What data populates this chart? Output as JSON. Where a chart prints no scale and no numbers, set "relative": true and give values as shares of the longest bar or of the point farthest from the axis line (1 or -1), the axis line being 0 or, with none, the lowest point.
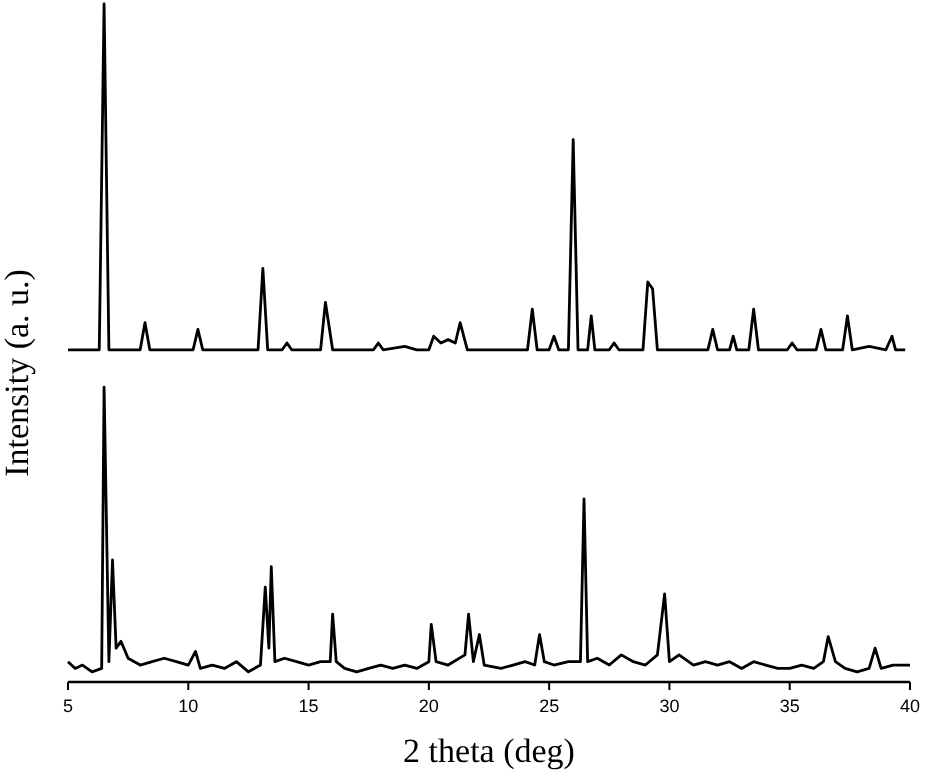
{
  "chart_data": {
    "type": "line",
    "relative": true,
    "xlabel": "2 theta (deg)",
    "ylabel": "Intensity (a. u.)",
    "xlim": [
      5,
      40
    ],
    "xticks": [
      5,
      10,
      15,
      20,
      25,
      30,
      35,
      40
    ],
    "tick_labels": "x",
    "series": [
      {
        "color": "#000000",
        "x": [
          5.0,
          6.3,
          6.5,
          6.7,
          8.0,
          8.2,
          8.4,
          10.2,
          10.4,
          10.6,
          12.9,
          13.1,
          13.3,
          13.9,
          14.1,
          14.3,
          15.5,
          15.7,
          16.0,
          17.7,
          17.9,
          18.1,
          19.0,
          19.5,
          20.0,
          20.2,
          20.5,
          20.8,
          21.1,
          21.3,
          21.6,
          22.5,
          23.5,
          24.1,
          24.3,
          24.5,
          25.0,
          25.2,
          25.4,
          25.8,
          26.0,
          26.2,
          26.6,
          26.75,
          26.9,
          27.5,
          27.7,
          27.9,
          28.9,
          29.1,
          29.3,
          29.5,
          31.6,
          31.8,
          32.0,
          32.5,
          32.65,
          32.8,
          33.3,
          33.5,
          33.7,
          34.9,
          35.1,
          35.3,
          36.1,
          36.3,
          36.5,
          37.2,
          37.4,
          37.6,
          38.3,
          39.0,
          39.25,
          39.4,
          39.8
        ],
        "values": [
          0.49,
          0.49,
          1.0,
          0.49,
          0.49,
          0.53,
          0.49,
          0.49,
          0.52,
          0.49,
          0.49,
          0.61,
          0.49,
          0.49,
          0.5,
          0.49,
          0.49,
          0.56,
          0.49,
          0.49,
          0.5,
          0.49,
          0.495,
          0.49,
          0.49,
          0.51,
          0.5,
          0.505,
          0.5,
          0.53,
          0.49,
          0.49,
          0.49,
          0.49,
          0.55,
          0.49,
          0.49,
          0.51,
          0.49,
          0.49,
          0.8,
          0.49,
          0.49,
          0.54,
          0.49,
          0.49,
          0.5,
          0.49,
          0.49,
          0.59,
          0.58,
          0.49,
          0.49,
          0.52,
          0.49,
          0.49,
          0.51,
          0.49,
          0.49,
          0.55,
          0.49,
          0.49,
          0.5,
          0.49,
          0.49,
          0.52,
          0.49,
          0.49,
          0.54,
          0.49,
          0.495,
          0.49,
          0.51,
          0.49,
          0.49
        ]
      },
      {
        "color": "#000000",
        "x": [
          5.0,
          5.3,
          5.6,
          6.0,
          6.4,
          6.5,
          6.7,
          6.85,
          7.0,
          7.2,
          7.5,
          8.0,
          8.5,
          9.0,
          9.5,
          10.0,
          10.3,
          10.5,
          11.0,
          11.5,
          12.0,
          12.5,
          13.0,
          13.2,
          13.35,
          13.45,
          13.6,
          14.0,
          14.5,
          15.0,
          15.5,
          15.9,
          16.0,
          16.15,
          16.5,
          17.0,
          17.5,
          18.0,
          18.5,
          19.0,
          19.5,
          20.0,
          20.1,
          20.3,
          20.8,
          21.5,
          21.65,
          21.85,
          22.1,
          22.3,
          23.0,
          23.5,
          24.0,
          24.4,
          24.6,
          24.8,
          25.2,
          25.8,
          26.3,
          26.45,
          26.6,
          27.0,
          27.5,
          28.0,
          28.5,
          29.0,
          29.5,
          29.8,
          30.0,
          30.4,
          31.0,
          31.5,
          32.0,
          32.5,
          33.0,
          33.5,
          34.0,
          34.5,
          35.0,
          35.5,
          36.0,
          36.4,
          36.6,
          36.9,
          37.3,
          37.8,
          38.3,
          38.55,
          38.8,
          39.3,
          40.0
        ],
        "values": [
          0.03,
          0.02,
          0.025,
          0.015,
          0.02,
          0.435,
          0.03,
          0.18,
          0.05,
          0.06,
          0.035,
          0.025,
          0.03,
          0.035,
          0.03,
          0.025,
          0.045,
          0.02,
          0.025,
          0.02,
          0.03,
          0.015,
          0.025,
          0.14,
          0.05,
          0.17,
          0.03,
          0.035,
          0.03,
          0.025,
          0.03,
          0.03,
          0.1,
          0.03,
          0.02,
          0.015,
          0.02,
          0.025,
          0.02,
          0.025,
          0.02,
          0.03,
          0.085,
          0.03,
          0.025,
          0.04,
          0.1,
          0.03,
          0.07,
          0.025,
          0.02,
          0.025,
          0.03,
          0.025,
          0.07,
          0.03,
          0.025,
          0.03,
          0.03,
          0.27,
          0.03,
          0.035,
          0.025,
          0.04,
          0.03,
          0.025,
          0.04,
          0.13,
          0.03,
          0.04,
          0.025,
          0.03,
          0.025,
          0.03,
          0.02,
          0.03,
          0.025,
          0.02,
          0.02,
          0.025,
          0.02,
          0.03,
          0.067,
          0.03,
          0.02,
          0.015,
          0.02,
          0.05,
          0.02,
          0.025,
          0.025
        ]
      }
    ]
  }
}
